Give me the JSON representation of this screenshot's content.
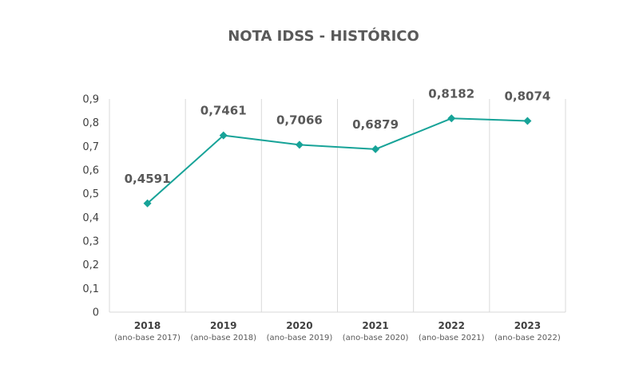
{
  "chart_data": {
    "type": "line",
    "title": "NOTA IDSS - HISTÓRICO",
    "categories": [
      {
        "year": "2018",
        "sub": "(ano-base 2017)"
      },
      {
        "year": "2019",
        "sub": "(ano-base 2018)"
      },
      {
        "year": "2020",
        "sub": "(ano-base 2019)"
      },
      {
        "year": "2021",
        "sub": "(ano-base 2020)"
      },
      {
        "year": "2022",
        "sub": "(ano-base 2021)"
      },
      {
        "year": "2023",
        "sub": "(ano-base 2022)"
      }
    ],
    "values": [
      0.4591,
      0.7461,
      0.7066,
      0.6879,
      0.8182,
      0.8074
    ],
    "data_labels": [
      "0,4591",
      "0,7461",
      "0,7066",
      "0,6879",
      "0,8182",
      "0,8074"
    ],
    "yticks": [
      "0",
      "0,1",
      "0,2",
      "0,3",
      "0,4",
      "0,5",
      "0,6",
      "0,7",
      "0,8",
      "0,9"
    ],
    "ylim": [
      0,
      0.9
    ],
    "line_color": "#17a398",
    "grid": "vertical",
    "legend": "none"
  }
}
